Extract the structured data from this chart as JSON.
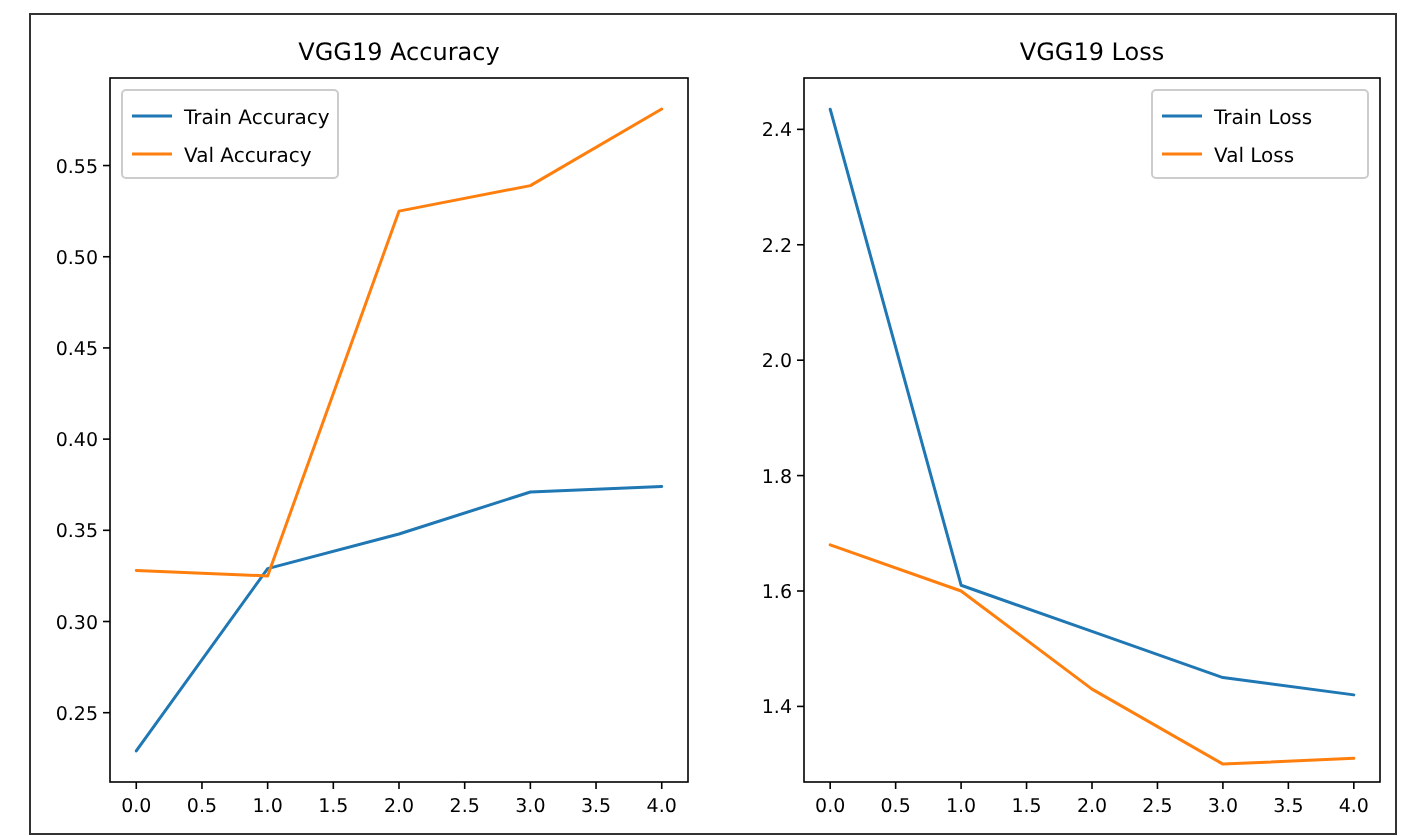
{
  "chart_data": [
    {
      "type": "line",
      "title": "VGG19 Accuracy",
      "x": [
        0,
        1,
        2,
        3,
        4
      ],
      "series": [
        {
          "name": "Train Accuracy",
          "color": "#1f77b4",
          "values": [
            0.229,
            0.329,
            0.348,
            0.371,
            0.374
          ]
        },
        {
          "name": "Val Accuracy",
          "color": "#ff7f0e",
          "values": [
            0.328,
            0.325,
            0.525,
            0.539,
            0.581
          ]
        }
      ],
      "xlim": [
        -0.2,
        4.2
      ],
      "xticks": [
        {
          "value": 0,
          "label": "0.0"
        },
        {
          "value": 0.5,
          "label": "0.5"
        },
        {
          "value": 1,
          "label": "1.0"
        },
        {
          "value": 1.5,
          "label": "1.5"
        },
        {
          "value": 2,
          "label": "2.0"
        },
        {
          "value": 2.5,
          "label": "2.5"
        },
        {
          "value": 3,
          "label": "3.0"
        },
        {
          "value": 3.5,
          "label": "3.5"
        },
        {
          "value": 4,
          "label": "4.0"
        }
      ],
      "ylim": [
        0.212,
        0.598
      ],
      "yticks": [
        {
          "value": 0.25,
          "label": "0.25"
        },
        {
          "value": 0.3,
          "label": "0.30"
        },
        {
          "value": 0.35,
          "label": "0.35"
        },
        {
          "value": 0.4,
          "label": "0.40"
        },
        {
          "value": 0.45,
          "label": "0.45"
        },
        {
          "value": 0.5,
          "label": "0.50"
        },
        {
          "value": 0.55,
          "label": "0.55"
        }
      ],
      "legend": "top left"
    },
    {
      "type": "line",
      "title": "VGG19 Loss",
      "x": [
        0,
        1,
        2,
        3,
        4
      ],
      "series": [
        {
          "name": "Train Loss",
          "color": "#1f77b4",
          "values": [
            2.435,
            1.61,
            1.53,
            1.45,
            1.42
          ]
        },
        {
          "name": "Val Loss",
          "color": "#ff7f0e",
          "values": [
            1.68,
            1.6,
            1.43,
            1.3,
            1.31
          ]
        }
      ],
      "xlim": [
        -0.2,
        4.2
      ],
      "xticks": [
        {
          "value": 0,
          "label": "0.0"
        },
        {
          "value": 0.5,
          "label": "0.5"
        },
        {
          "value": 1,
          "label": "1.0"
        },
        {
          "value": 1.5,
          "label": "1.5"
        },
        {
          "value": 2,
          "label": "2.0"
        },
        {
          "value": 2.5,
          "label": "2.5"
        },
        {
          "value": 3,
          "label": "3.0"
        },
        {
          "value": 3.5,
          "label": "3.5"
        },
        {
          "value": 4,
          "label": "4.0"
        }
      ],
      "ylim": [
        1.269,
        2.489
      ],
      "yticks": [
        {
          "value": 1.4,
          "label": "1.4"
        },
        {
          "value": 1.6,
          "label": "1.6"
        },
        {
          "value": 1.8,
          "label": "1.8"
        },
        {
          "value": 2.0,
          "label": "2.0"
        },
        {
          "value": 2.2,
          "label": "2.2"
        },
        {
          "value": 2.4,
          "label": "2.4"
        }
      ],
      "legend": "top right"
    }
  ]
}
